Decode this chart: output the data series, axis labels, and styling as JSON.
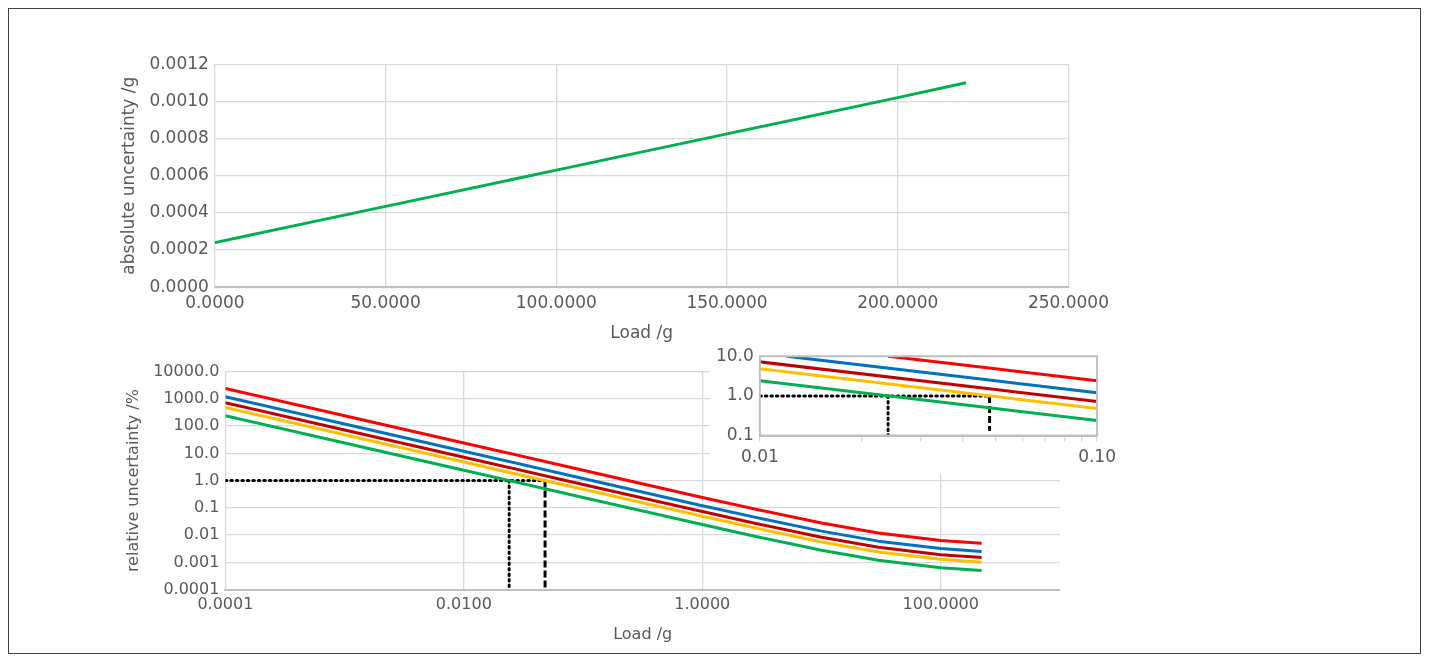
{
  "chart_data": [
    {
      "type": "line",
      "xlabel": "Load /g",
      "ylabel": "absolute uncertainty /g",
      "x": [
        0,
        50,
        100,
        150,
        200,
        220
      ],
      "series": [
        {
          "color": "#00b050",
          "values": [
            0.00024,
            0.000435,
            0.00063,
            0.000825,
            0.00102,
            0.0011
          ]
        }
      ],
      "xlim": [
        0,
        250
      ],
      "xticks": [
        {
          "value": 0,
          "label": "0.0000"
        },
        {
          "value": 50,
          "label": "50.0000"
        },
        {
          "value": 100,
          "label": "100.0000"
        },
        {
          "value": 150,
          "label": "150.0000"
        },
        {
          "value": 200,
          "label": "200.0000"
        },
        {
          "value": 250,
          "label": "250.0000"
        }
      ],
      "ylim": [
        0,
        0.0012
      ],
      "yticks": [
        {
          "value": 0,
          "label": "0.0000"
        },
        {
          "value": 0.0002,
          "label": "0.0002"
        },
        {
          "value": 0.0004,
          "label": "0.0004"
        },
        {
          "value": 0.0006,
          "label": "0.0006"
        },
        {
          "value": 0.0008,
          "label": "0.0008"
        },
        {
          "value": 0.001,
          "label": "0.0010"
        },
        {
          "value": 0.0012,
          "label": "0.0012"
        }
      ],
      "grid": true,
      "legend": false,
      "marker": "none"
    },
    {
      "type": "line",
      "xlabel": "Load /g",
      "ylabel": "relative uncertainty /%",
      "x": [
        0.0001,
        0.001,
        0.01,
        0.1,
        1,
        3,
        10,
        30,
        100,
        220
      ],
      "series": [
        {
          "color": "#ff0000",
          "values": [
            2400,
            240,
            24,
            2.4,
            0.24,
            0.084,
            0.028,
            0.012,
            0.0063,
            0.005
          ]
        },
        {
          "color": "#0070c0",
          "values": [
            1200,
            120,
            12,
            1.2,
            0.12,
            0.042,
            0.014,
            0.006,
            0.0032,
            0.0025
          ]
        },
        {
          "color": "#c00000",
          "values": [
            720,
            72,
            7.2,
            0.72,
            0.073,
            0.025,
            0.0084,
            0.0036,
            0.0019,
            0.0015
          ]
        },
        {
          "color": "#ffc000",
          "values": [
            480,
            48,
            4.8,
            0.48,
            0.049,
            0.017,
            0.0056,
            0.0024,
            0.0013,
            0.001
          ]
        },
        {
          "color": "#00b050",
          "values": [
            240,
            24,
            2.4,
            0.24,
            0.0244,
            0.0084,
            0.0028,
            0.0012,
            0.00063,
            0.0005
          ]
        },
        {
          "type": "line",
          "color": "#000000",
          "line_style": "dotted",
          "x": [
            0.0001,
            0.048
          ],
          "values": [
            1,
            1
          ]
        },
        {
          "type": "line",
          "color": "#000000",
          "line_style": "dotted",
          "x": [
            0.024,
            0.024
          ],
          "values": [
            1,
            0.0001
          ]
        },
        {
          "type": "line",
          "color": "#000000",
          "line_style": "dashed",
          "x": [
            0.048,
            0.048
          ],
          "values": [
            1,
            0.0001
          ]
        }
      ],
      "log": "xy",
      "xlim": [
        0.0001,
        1000
      ],
      "xticks": [
        0.0001,
        {
          "value": 0.01,
          "label": "0.0100"
        },
        {
          "value": 1,
          "label": "1.0000"
        },
        {
          "value": 100,
          "label": "100.0000"
        }
      ],
      "ylim": [
        0.0001,
        10000
      ],
      "yticks": [
        0.0001,
        0.001,
        0.01,
        0.1,
        {
          "value": 1,
          "label": "1.0"
        },
        {
          "value": 10,
          "label": "10.0"
        },
        {
          "value": 100,
          "label": "100.0"
        },
        {
          "value": 1000,
          "label": "1000.0"
        },
        {
          "value": 10000,
          "label": "10000.0"
        }
      ],
      "grid": true,
      "legend": false,
      "marker": "none"
    },
    {
      "type": "line",
      "series": [
        {
          "color": "#ff0000",
          "x": [
            0.024,
            0.05,
            0.1
          ],
          "values": [
            10,
            4.8,
            2.4
          ]
        },
        {
          "color": "#0070c0",
          "x": [
            0.012,
            0.05,
            0.1
          ],
          "values": [
            10,
            2.4,
            1.2
          ]
        },
        {
          "color": "#c00000",
          "x": [
            0.01,
            0.05,
            0.1
          ],
          "values": [
            7.2,
            1.44,
            0.72
          ]
        },
        {
          "color": "#ffc000",
          "x": [
            0.01,
            0.05,
            0.1
          ],
          "values": [
            4.8,
            0.96,
            0.48
          ]
        },
        {
          "color": "#00b050",
          "x": [
            0.01,
            0.05,
            0.1
          ],
          "values": [
            2.4,
            0.48,
            0.24
          ]
        },
        {
          "color": "#000000",
          "line_style": "dotted",
          "x": [
            0.01,
            0.048
          ],
          "values": [
            1,
            1
          ]
        },
        {
          "color": "#000000",
          "line_style": "dotted",
          "x": [
            0.024,
            0.024
          ],
          "values": [
            1,
            0.1
          ]
        },
        {
          "color": "#000000",
          "line_style": "dashed",
          "x": [
            0.048,
            0.048
          ],
          "values": [
            1,
            0.13
          ]
        }
      ],
      "log": "xy",
      "xlim": [
        0.01,
        0.1
      ],
      "xticks": [
        0.01,
        {
          "value": 0.02,
          "label": null
        },
        {
          "value": 0.03,
          "label": null
        },
        {
          "value": 0.04,
          "label": null
        },
        {
          "value": 0.05,
          "label": null
        },
        {
          "value": 0.06,
          "label": null
        },
        {
          "value": 0.07,
          "label": null
        },
        {
          "value": 0.08,
          "label": null
        },
        {
          "value": 0.09,
          "label": null
        },
        {
          "value": 0.1,
          "label": "0.10"
        }
      ],
      "ylim": [
        0.1,
        10
      ],
      "yticks": [
        0.1,
        {
          "value": 1,
          "label": "1.0"
        },
        {
          "value": 10,
          "label": "10.0"
        }
      ],
      "legend": false,
      "marker": "none"
    }
  ]
}
